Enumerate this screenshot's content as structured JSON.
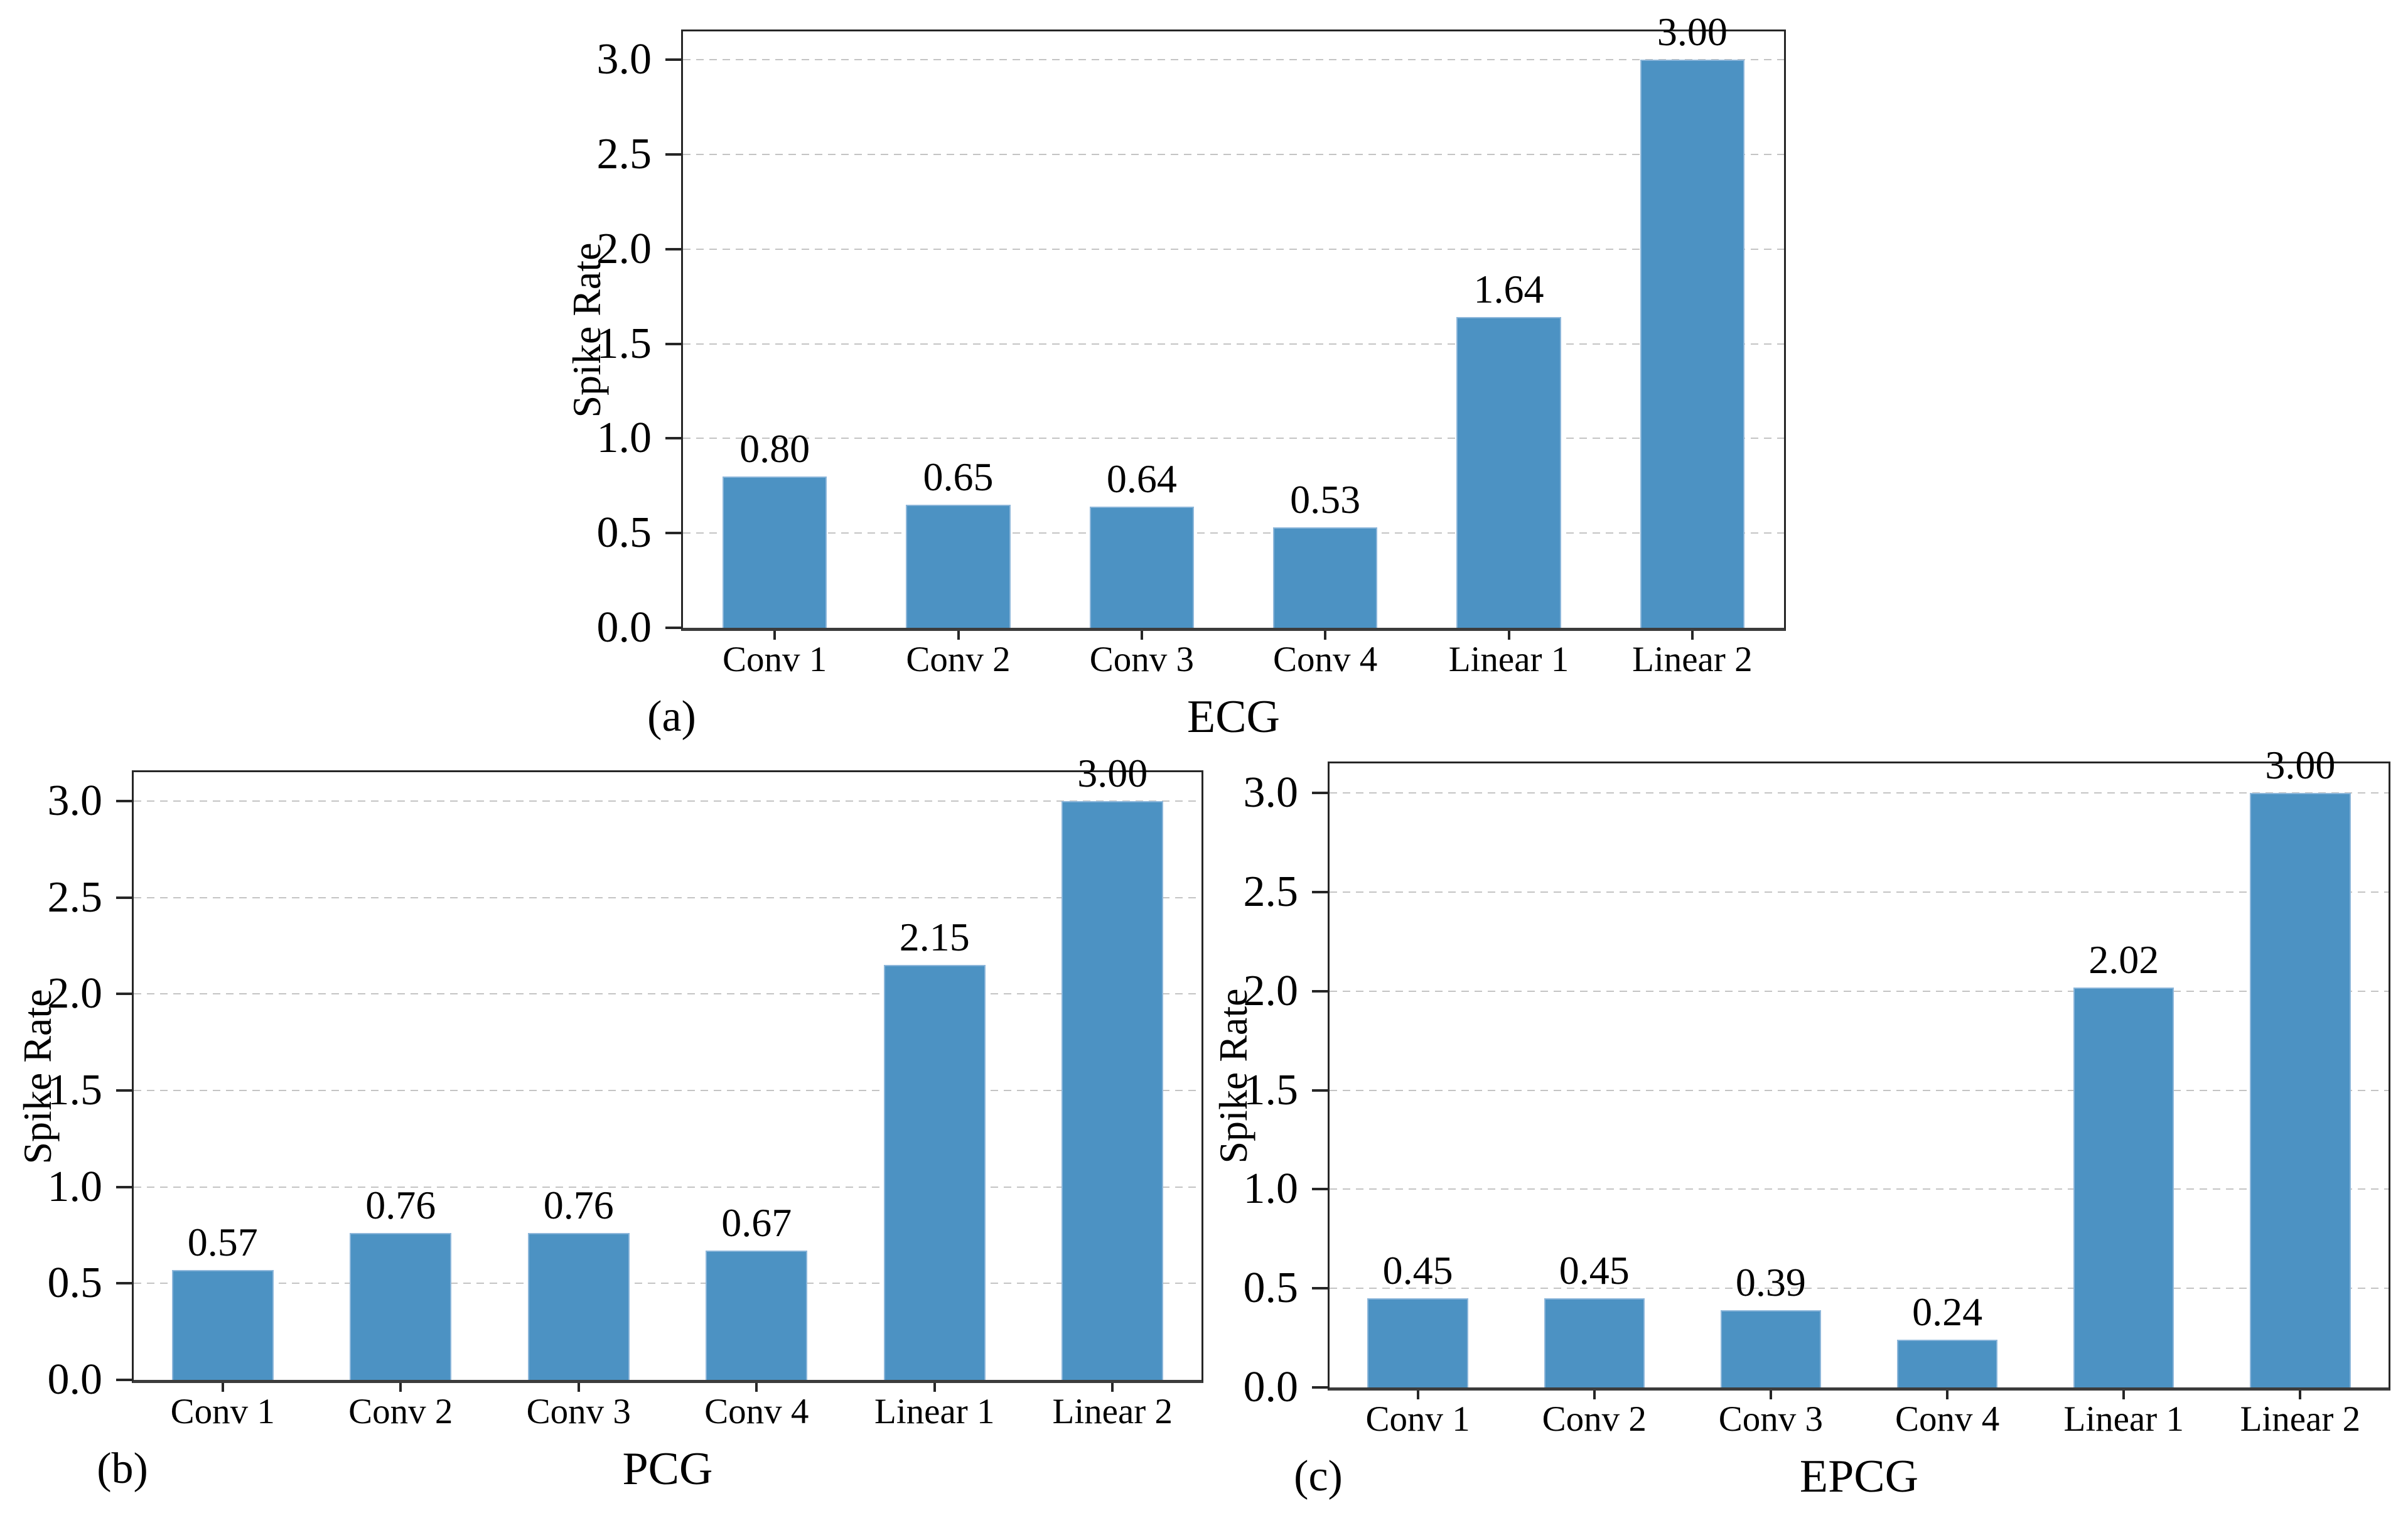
{
  "figure": {
    "background_color": "#ffffff",
    "text_color": "#000000",
    "accent_bar_color": "#4C92C3",
    "bar_edge_color": "#8CB6DA",
    "gridline_color": "#c4c4c4",
    "spine_color": "#262626"
  },
  "chart_data": [
    {
      "type": "bar",
      "panel_label": "(a)",
      "xlabel": "ECG",
      "ylabel": "Spike Rate",
      "categories": [
        "Conv 1",
        "Conv 2",
        "Conv 3",
        "Conv 4",
        "Linear 1",
        "Linear 2"
      ],
      "values": [
        0.8,
        0.65,
        0.64,
        0.53,
        1.64,
        3.0
      ],
      "bar_labels": [
        "0.80",
        "0.65",
        "0.64",
        "0.53",
        "1.64",
        "3.00"
      ],
      "ytick_values": [
        0,
        0.5,
        1,
        1.5,
        2,
        2.5,
        3
      ],
      "ytick_labels": [
        "0.0",
        "0.5",
        "1.0",
        "1.5",
        "2.0",
        "2.5",
        "3.0"
      ],
      "ylim": [
        0,
        3.15
      ],
      "grid": "horizontal-dashed",
      "legend": null,
      "bar_color": "#4C92C3"
    },
    {
      "type": "bar",
      "panel_label": "(b)",
      "xlabel": "PCG",
      "ylabel": "Spike Rate",
      "categories": [
        "Conv 1",
        "Conv 2",
        "Conv 3",
        "Conv 4",
        "Linear 1",
        "Linear 2"
      ],
      "values": [
        0.57,
        0.76,
        0.76,
        0.67,
        2.15,
        3.0
      ],
      "bar_labels": [
        "0.57",
        "0.76",
        "0.76",
        "0.67",
        "2.15",
        "3.00"
      ],
      "ytick_values": [
        0,
        0.5,
        1,
        1.5,
        2,
        2.5,
        3
      ],
      "ytick_labels": [
        "0.0",
        "0.5",
        "1.0",
        "1.5",
        "2.0",
        "2.5",
        "3.0"
      ],
      "ylim": [
        0,
        3.15
      ],
      "grid": "horizontal-dashed",
      "legend": null,
      "bar_color": "#4C92C3"
    },
    {
      "type": "bar",
      "panel_label": "(c)",
      "xlabel": "EPCG",
      "ylabel": "Spike Rate",
      "categories": [
        "Conv 1",
        "Conv 2",
        "Conv 3",
        "Conv 4",
        "Linear 1",
        "Linear 2"
      ],
      "values": [
        0.45,
        0.45,
        0.39,
        0.24,
        2.02,
        3.0
      ],
      "bar_labels": [
        "0.45",
        "0.45",
        "0.39",
        "0.24",
        "2.02",
        "3.00"
      ],
      "ytick_values": [
        0,
        0.5,
        1,
        1.5,
        2,
        2.5,
        3
      ],
      "ytick_labels": [
        "0.0",
        "0.5",
        "1.0",
        "1.5",
        "2.0",
        "2.5",
        "3.0"
      ],
      "ylim": [
        0,
        3.15
      ],
      "grid": "horizontal-dashed",
      "legend": null,
      "bar_color": "#4C92C3"
    }
  ]
}
